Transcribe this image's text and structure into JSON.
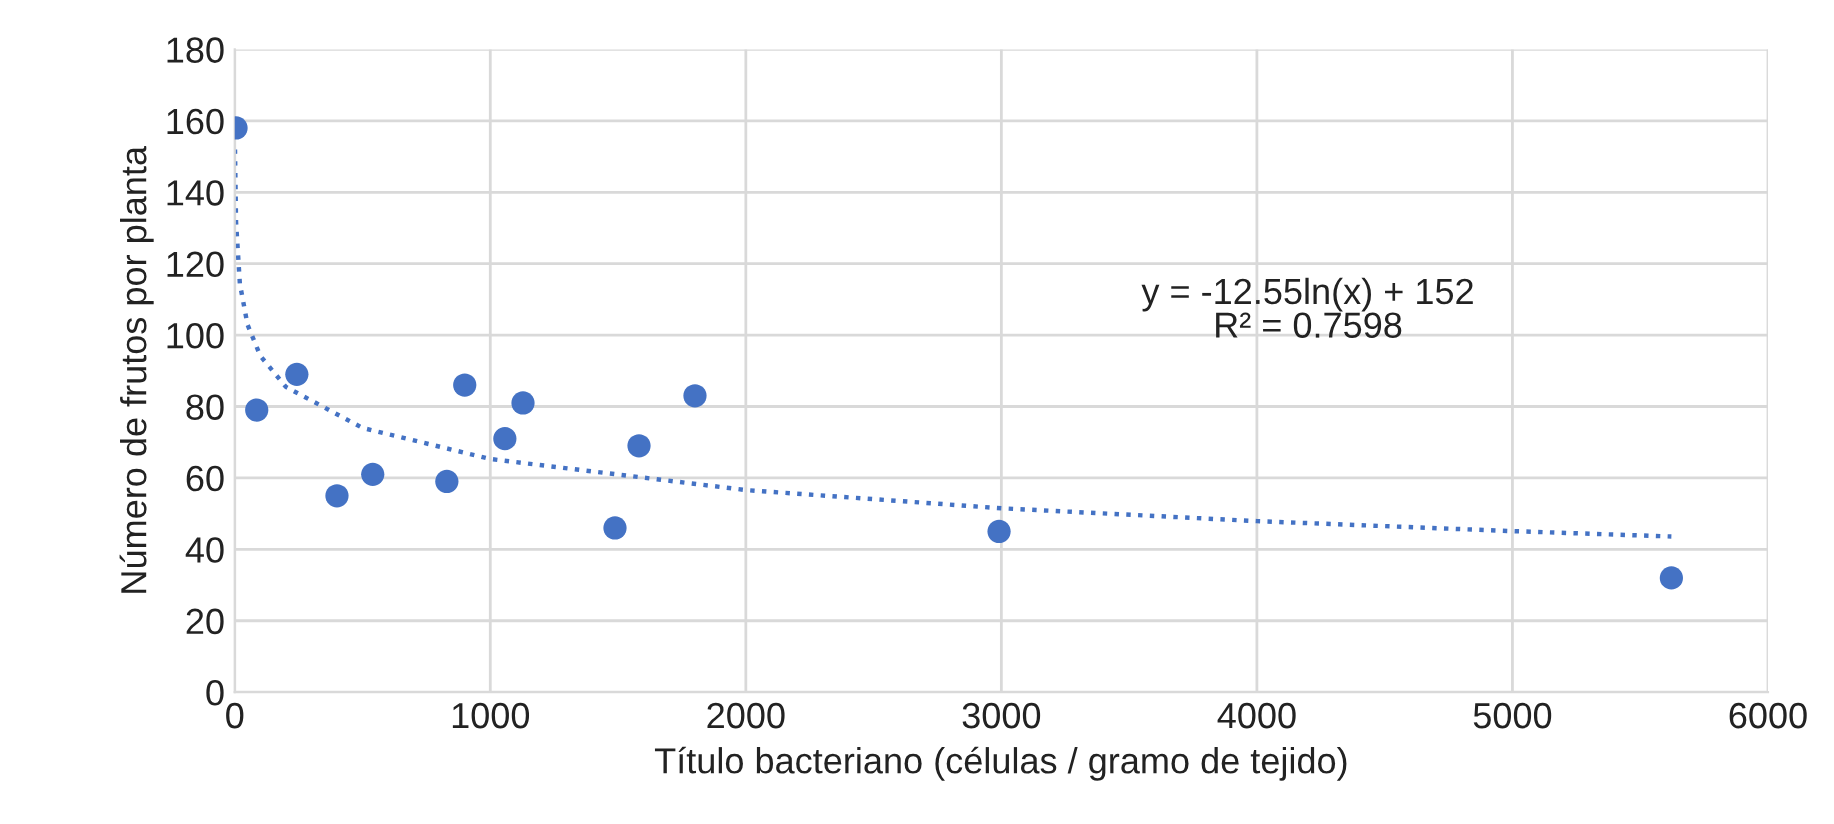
{
  "chart_data": {
    "type": "scatter",
    "xlabel": "Título bacteriano (células / gramo de tejido)",
    "ylabel": "Número de frutos por planta",
    "xlim": [
      0,
      6000
    ],
    "xticks": [
      0,
      1000,
      2000,
      3000,
      4000,
      5000,
      6000
    ],
    "ylim": [
      0,
      180
    ],
    "yticks": [
      0,
      20,
      40,
      60,
      80,
      100,
      120,
      140,
      160,
      180
    ],
    "grid": true,
    "legend": false,
    "series": [
      {
        "color": "#4472c4",
        "marker": "circle",
        "x": [
          5,
          86,
          243,
          400,
          540,
          830,
          900,
          1057,
          1128,
          1488,
          1582,
          1801,
          2991,
          5622
        ],
        "values": [
          158,
          79,
          89,
          55,
          61,
          59,
          86,
          71,
          81,
          46,
          69,
          83,
          45,
          32
        ]
      },
      {
        "type": "line",
        "color": "#4472c4",
        "line_style": "dotted",
        "marker": "none",
        "x": [
          1,
          5,
          20,
          50,
          100,
          200,
          500,
          1000,
          2000,
          3000,
          4000,
          5000,
          5622
        ],
        "values": [
          152,
          131.8,
          114.4,
          102.9,
          94.2,
          85.5,
          74.0,
          65.3,
          56.6,
          51.5,
          47.9,
          45.1,
          43.6
        ]
      }
    ],
    "annotations": [
      "y = -12.55ln(x) + 152\nR² = 0.7598"
    ]
  }
}
